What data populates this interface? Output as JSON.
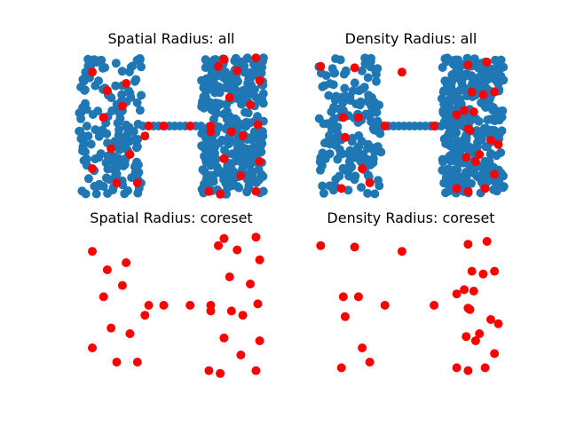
{
  "chart_data": [
    {
      "type": "scatter",
      "title": "Spatial Radius: all",
      "xlabel": "",
      "ylabel": "",
      "axes_visible": false,
      "background_points": {
        "color": "#1f77b4",
        "shape": "dumbbell"
      },
      "series": [
        {
          "color": "#ff0000",
          "points": [
            [
              0.08,
              0.88
            ],
            [
              0.16,
              0.75
            ],
            [
              0.26,
              0.8
            ],
            [
              0.14,
              0.56
            ],
            [
              0.46,
              0.5
            ],
            [
              0.36,
              0.43
            ],
            [
              0.24,
              0.64
            ],
            [
              0.18,
              0.34
            ],
            [
              0.28,
              0.3
            ],
            [
              0.08,
              0.2
            ],
            [
              0.21,
              0.1
            ],
            [
              0.32,
              0.1
            ],
            [
              0.38,
              0.5
            ],
            [
              0.6,
              0.5
            ],
            [
              0.71,
              0.5
            ],
            [
              0.75,
              0.92
            ],
            [
              0.78,
              0.97
            ],
            [
              0.85,
              0.89
            ],
            [
              0.95,
              0.98
            ],
            [
              0.97,
              0.82
            ],
            [
              0.81,
              0.7
            ],
            [
              0.92,
              0.65
            ],
            [
              0.96,
              0.51
            ],
            [
              0.71,
              0.46
            ],
            [
              0.82,
              0.46
            ],
            [
              0.88,
              0.43
            ],
            [
              0.78,
              0.27
            ],
            [
              0.97,
              0.25
            ],
            [
              0.87,
              0.15
            ],
            [
              0.7,
              0.04
            ],
            [
              0.76,
              0.02
            ],
            [
              0.95,
              0.04
            ]
          ]
        }
      ]
    },
    {
      "type": "scatter",
      "title": "Density Radius: all",
      "xlabel": "",
      "ylabel": "",
      "axes_visible": false,
      "background_points": {
        "color": "#1f77b4",
        "shape": "dumbbell"
      },
      "series": [
        {
          "color": "#ff0000",
          "points": [
            [
              0.02,
              0.92
            ],
            [
              0.2,
              0.91
            ],
            [
              0.45,
              0.88
            ],
            [
              0.14,
              0.56
            ],
            [
              0.22,
              0.56
            ],
            [
              0.15,
              0.42
            ],
            [
              0.62,
              0.5
            ],
            [
              0.8,
              0.93
            ],
            [
              0.9,
              0.95
            ],
            [
              0.94,
              0.74
            ],
            [
              0.82,
              0.74
            ],
            [
              0.88,
              0.72
            ],
            [
              0.78,
              0.61
            ],
            [
              0.83,
              0.6
            ],
            [
              0.74,
              0.58
            ],
            [
              0.81,
              0.47
            ],
            [
              0.79,
              0.28
            ],
            [
              0.86,
              0.3
            ],
            [
              0.92,
              0.4
            ],
            [
              0.96,
              0.37
            ],
            [
              0.8,
              0.48
            ],
            [
              0.84,
              0.25
            ],
            [
              0.94,
              0.16
            ],
            [
              0.74,
              0.06
            ],
            [
              0.8,
              0.04
            ],
            [
              0.89,
              0.06
            ],
            [
              0.24,
              0.2
            ],
            [
              0.13,
              0.06
            ],
            [
              0.28,
              0.1
            ],
            [
              0.36,
              0.5
            ]
          ]
        }
      ]
    },
    {
      "type": "scatter",
      "title": "Spatial Radius: coreset",
      "xlabel": "",
      "ylabel": "",
      "axes_visible": false,
      "series": [
        {
          "color": "#ff0000",
          "points": [
            [
              0.08,
              0.88
            ],
            [
              0.16,
              0.75
            ],
            [
              0.26,
              0.8
            ],
            [
              0.14,
              0.56
            ],
            [
              0.46,
              0.5
            ],
            [
              0.36,
              0.43
            ],
            [
              0.24,
              0.64
            ],
            [
              0.18,
              0.34
            ],
            [
              0.28,
              0.3
            ],
            [
              0.08,
              0.2
            ],
            [
              0.21,
              0.1
            ],
            [
              0.32,
              0.1
            ],
            [
              0.38,
              0.5
            ],
            [
              0.6,
              0.5
            ],
            [
              0.71,
              0.5
            ],
            [
              0.75,
              0.92
            ],
            [
              0.78,
              0.97
            ],
            [
              0.85,
              0.89
            ],
            [
              0.95,
              0.98
            ],
            [
              0.97,
              0.82
            ],
            [
              0.81,
              0.7
            ],
            [
              0.92,
              0.65
            ],
            [
              0.96,
              0.51
            ],
            [
              0.71,
              0.46
            ],
            [
              0.82,
              0.46
            ],
            [
              0.88,
              0.43
            ],
            [
              0.78,
              0.27
            ],
            [
              0.97,
              0.25
            ],
            [
              0.87,
              0.15
            ],
            [
              0.7,
              0.04
            ],
            [
              0.76,
              0.02
            ],
            [
              0.95,
              0.04
            ]
          ]
        }
      ]
    },
    {
      "type": "scatter",
      "title": "Density Radius: coreset",
      "xlabel": "",
      "ylabel": "",
      "axes_visible": false,
      "series": [
        {
          "color": "#ff0000",
          "points": [
            [
              0.02,
              0.92
            ],
            [
              0.2,
              0.91
            ],
            [
              0.45,
              0.88
            ],
            [
              0.14,
              0.56
            ],
            [
              0.22,
              0.56
            ],
            [
              0.15,
              0.42
            ],
            [
              0.62,
              0.5
            ],
            [
              0.8,
              0.93
            ],
            [
              0.9,
              0.95
            ],
            [
              0.94,
              0.74
            ],
            [
              0.82,
              0.74
            ],
            [
              0.88,
              0.72
            ],
            [
              0.78,
              0.61
            ],
            [
              0.83,
              0.6
            ],
            [
              0.74,
              0.58
            ],
            [
              0.81,
              0.47
            ],
            [
              0.79,
              0.28
            ],
            [
              0.86,
              0.3
            ],
            [
              0.92,
              0.4
            ],
            [
              0.96,
              0.37
            ],
            [
              0.8,
              0.48
            ],
            [
              0.84,
              0.25
            ],
            [
              0.94,
              0.16
            ],
            [
              0.74,
              0.06
            ],
            [
              0.8,
              0.04
            ],
            [
              0.89,
              0.06
            ],
            [
              0.24,
              0.2
            ],
            [
              0.13,
              0.06
            ],
            [
              0.28,
              0.1
            ],
            [
              0.36,
              0.5
            ]
          ]
        }
      ]
    }
  ]
}
